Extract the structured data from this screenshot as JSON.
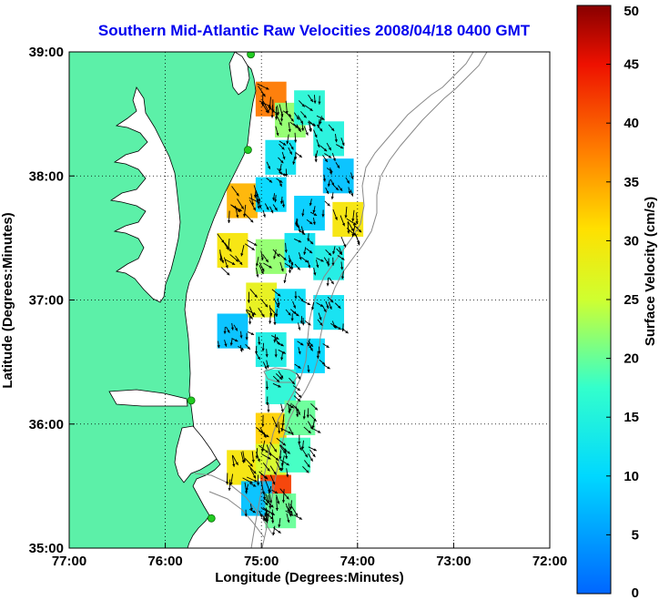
{
  "chart_data": {
    "type": "heatmap",
    "title": "Southern Mid-Atlantic Raw Velocities 2008/04/18 0400 GMT",
    "xlabel": "Longitude (Degrees:Minutes)",
    "ylabel": "Latitude (Degrees:Minutes)",
    "xlim": [
      -77,
      -72
    ],
    "ylim": [
      35,
      39
    ],
    "xticks": [
      {
        "value": -77,
        "label": "77:00"
      },
      {
        "value": -76,
        "label": "76:00"
      },
      {
        "value": -75,
        "label": "75:00"
      },
      {
        "value": -74,
        "label": "74:00"
      },
      {
        "value": -73,
        "label": "73:00"
      },
      {
        "value": -72,
        "label": "72:00"
      }
    ],
    "yticks": [
      {
        "value": 35,
        "label": "35:00"
      },
      {
        "value": 36,
        "label": "36:00"
      },
      {
        "value": 37,
        "label": "37:00"
      },
      {
        "value": 38,
        "label": "38:00"
      },
      {
        "value": 39,
        "label": "39:00"
      }
    ],
    "grid": true,
    "grid_style": "dotted",
    "colorbar": {
      "label": "Surface Velocity (cm/s)",
      "range": [
        0,
        50
      ],
      "ticks": [
        0,
        5,
        10,
        15,
        20,
        25,
        30,
        35,
        40,
        45,
        50
      ],
      "colormap": "jet"
    },
    "land_color": "#5cf0a8",
    "coast_color": "#000000",
    "arrow_color": "#000000",
    "station_color": "#22cc22",
    "stations": [
      {
        "lon": -75.11,
        "lat": 38.98
      },
      {
        "lon": -75.14,
        "lat": 38.21
      },
      {
        "lon": -75.73,
        "lat": 36.19
      },
      {
        "lon": -75.52,
        "lat": 35.24
      }
    ],
    "velocity_regions": [
      {
        "lon": -74.9,
        "lat": 38.62,
        "speed": 38
      },
      {
        "lon": -74.7,
        "lat": 38.45,
        "speed": 22
      },
      {
        "lon": -74.5,
        "lat": 38.55,
        "speed": 16
      },
      {
        "lon": -74.3,
        "lat": 38.3,
        "speed": 15
      },
      {
        "lon": -74.8,
        "lat": 38.15,
        "speed": 12
      },
      {
        "lon": -74.2,
        "lat": 38.0,
        "speed": 8
      },
      {
        "lon": -75.2,
        "lat": 37.8,
        "speed": 34
      },
      {
        "lon": -74.9,
        "lat": 37.85,
        "speed": 10
      },
      {
        "lon": -74.5,
        "lat": 37.7,
        "speed": 9
      },
      {
        "lon": -74.1,
        "lat": 37.65,
        "speed": 30
      },
      {
        "lon": -75.3,
        "lat": 37.4,
        "speed": 30
      },
      {
        "lon": -74.9,
        "lat": 37.35,
        "speed": 22
      },
      {
        "lon": -74.6,
        "lat": 37.4,
        "speed": 12
      },
      {
        "lon": -74.3,
        "lat": 37.3,
        "speed": 14
      },
      {
        "lon": -75.0,
        "lat": 37.0,
        "speed": 28
      },
      {
        "lon": -74.7,
        "lat": 36.95,
        "speed": 11
      },
      {
        "lon": -74.3,
        "lat": 36.9,
        "speed": 12
      },
      {
        "lon": -75.3,
        "lat": 36.75,
        "speed": 8
      },
      {
        "lon": -74.9,
        "lat": 36.6,
        "speed": 14
      },
      {
        "lon": -74.5,
        "lat": 36.55,
        "speed": 10
      },
      {
        "lon": -74.8,
        "lat": 36.3,
        "speed": 16
      },
      {
        "lon": -74.9,
        "lat": 35.95,
        "speed": 32
      },
      {
        "lon": -74.6,
        "lat": 36.05,
        "speed": 20
      },
      {
        "lon": -75.2,
        "lat": 35.65,
        "speed": 30
      },
      {
        "lon": -74.9,
        "lat": 35.7,
        "speed": 26
      },
      {
        "lon": -74.65,
        "lat": 35.75,
        "speed": 18
      },
      {
        "lon": -74.85,
        "lat": 35.45,
        "speed": 42
      },
      {
        "lon": -75.05,
        "lat": 35.4,
        "speed": 8
      },
      {
        "lon": -74.8,
        "lat": 35.3,
        "speed": 20
      }
    ]
  }
}
